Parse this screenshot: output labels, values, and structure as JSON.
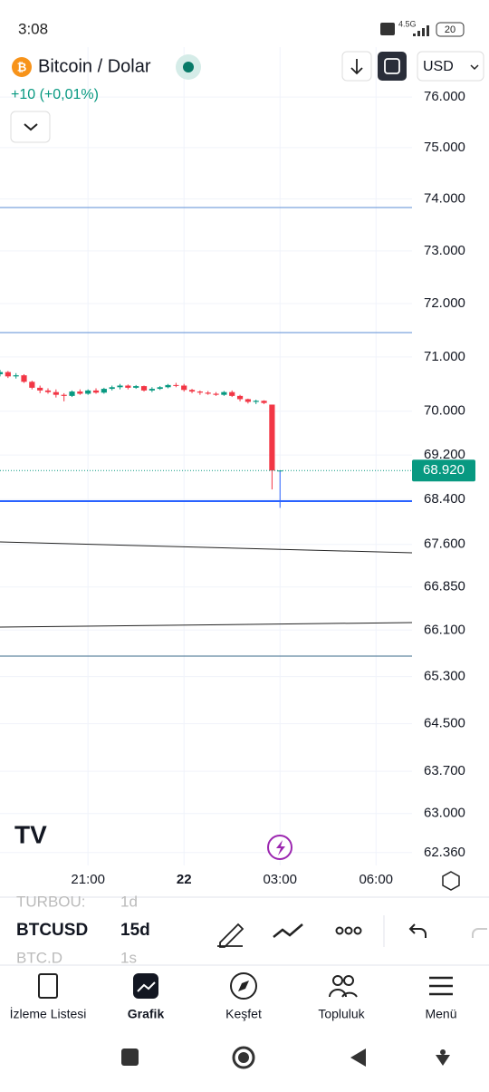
{
  "status_bar": {
    "time": "3:08",
    "network": "4.5G",
    "battery": "20"
  },
  "header": {
    "symbol_name": "Bitcoin / Dolar",
    "change": "+10 (+0,01%)",
    "currency": "USD"
  },
  "chart_data": {
    "type": "candlestick",
    "open": [
      70680,
      70720,
      70640,
      70660,
      70540,
      70430,
      70380,
      70350,
      70300,
      70280,
      70360,
      70320,
      70380,
      70340,
      70410,
      70440,
      70470,
      70430,
      70460,
      70380,
      70410,
      70440,
      70480,
      70470,
      70390,
      70360,
      70340,
      70320,
      70300,
      70350,
      70280,
      70220,
      70170,
      70190,
      70120,
      68920
    ],
    "high": [
      70760,
      70740,
      70700,
      70680,
      70560,
      70470,
      70420,
      70400,
      70330,
      70380,
      70400,
      70400,
      70420,
      70430,
      70470,
      70500,
      70490,
      70480,
      70470,
      70440,
      70460,
      70500,
      70520,
      70500,
      70410,
      70380,
      70370,
      70350,
      70370,
      70380,
      70300,
      70230,
      70210,
      70200,
      70120,
      68920
    ],
    "low": [
      70640,
      70610,
      70600,
      70520,
      70400,
      70330,
      70320,
      70250,
      70180,
      70260,
      70300,
      70300,
      70320,
      70320,
      70380,
      70400,
      70400,
      70410,
      70360,
      70350,
      70390,
      70420,
      70440,
      70360,
      70330,
      70300,
      70300,
      70280,
      70280,
      70260,
      70180,
      70140,
      70130,
      70130,
      68580,
      68250
    ],
    "close": [
      70720,
      70640,
      70660,
      70540,
      70430,
      70380,
      70350,
      70300,
      70280,
      70360,
      70320,
      70380,
      70340,
      70410,
      70440,
      70470,
      70430,
      70460,
      70380,
      70410,
      70440,
      70480,
      70470,
      70390,
      70360,
      70340,
      70320,
      70300,
      70350,
      70280,
      70220,
      70170,
      70190,
      70150,
      68920,
      68920
    ],
    "up_color": "#089981",
    "down_color": "#f23645",
    "log_scale": true,
    "ylim": [
      62150,
      77000
    ],
    "yticks": [
      {
        "value": 76000,
        "label": "76.000"
      },
      {
        "value": 75000,
        "label": "75.000"
      },
      {
        "value": 74000,
        "label": "74.000"
      },
      {
        "value": 73000,
        "label": "73.000"
      },
      {
        "value": 72000,
        "label": "72.000"
      },
      {
        "value": 71000,
        "label": "71.000"
      },
      {
        "value": 70000,
        "label": "70.000"
      },
      {
        "value": 69200,
        "label": "69.200"
      },
      {
        "value": 68400,
        "label": "68.400"
      },
      {
        "value": 67600,
        "label": "67.600"
      },
      {
        "value": 66850,
        "label": "66.850"
      },
      {
        "value": 66100,
        "label": "66.100"
      },
      {
        "value": 65300,
        "label": "65.300"
      },
      {
        "value": 64500,
        "label": "64.500"
      },
      {
        "value": 63700,
        "label": "63.700"
      },
      {
        "value": 63000,
        "label": "63.000"
      },
      {
        "value": 62360,
        "label": "62.360"
      }
    ],
    "xlim": [
      0,
      51.5
    ],
    "xticks": [
      {
        "value": 11,
        "label": "21:00"
      },
      {
        "value": 23,
        "label": "22"
      },
      {
        "value": 35,
        "label": "03:00"
      },
      {
        "value": 47,
        "label": "06:00"
      }
    ],
    "last_price": {
      "value": 68920,
      "label": "68.920"
    },
    "grid": true
  },
  "toolbar": {
    "rows": [
      {
        "symbol": "TURBOU:",
        "interval": "1d"
      },
      {
        "symbol": "BTCUSD",
        "interval": "15d"
      },
      {
        "symbol": "BTC.D",
        "interval": "1s"
      }
    ]
  },
  "nav": {
    "items": [
      "İzleme Listesi",
      "Grafik",
      "Keşfet",
      "Topluluk",
      "Menü"
    ]
  }
}
